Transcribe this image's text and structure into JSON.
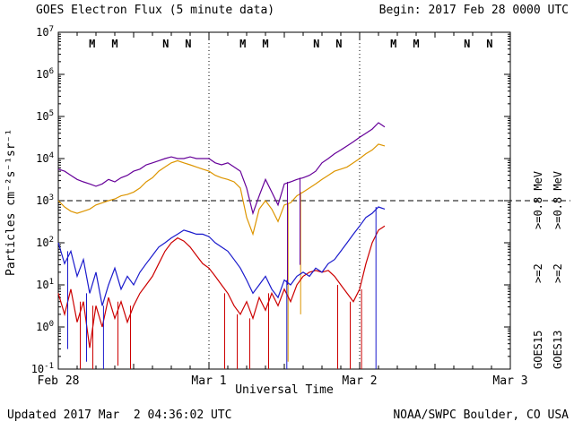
{
  "header": {
    "title": "GOES Electron Flux (5 minute data)",
    "begin": "Begin: 2017 Feb 28 0000 UTC"
  },
  "footer": {
    "updated": "Updated 2017 Mar  2 04:36:02 UTC",
    "credit": "NOAA/SWPC Boulder, CO USA"
  },
  "chart_data": {
    "type": "line",
    "title": "GOES Electron Flux (5 minute data)",
    "xlabel": "Universal Time",
    "ylabel": "Particles cm⁻²s⁻¹sr⁻¹",
    "yscale": "log",
    "ylim": [
      0.1,
      10000000
    ],
    "xaxis": {
      "range_hours": 72,
      "minor_tick_hours": 3,
      "day_gridlines_t": [
        24,
        48
      ],
      "ticks": [
        {
          "t": 0,
          "label": "Feb 28"
        },
        {
          "t": 24,
          "label": "Mar 1"
        },
        {
          "t": 48,
          "label": "Mar 2"
        },
        {
          "t": 72,
          "label": "Mar 3"
        }
      ]
    },
    "yaxis": {
      "max_exp": 7,
      "min_exp": -1,
      "tick_exponents": [
        7,
        6,
        5,
        4,
        3,
        2,
        1,
        0,
        -1
      ]
    },
    "threshold": {
      "value": 1000,
      "style": "dashed"
    },
    "colors": {
      "goes15_gt2": "#cc0000",
      "goes13_gt2": "#1a1acc",
      "goes15_gt08": "#dd9500",
      "goes13_gt08": "#660099",
      "axis": "#000000"
    },
    "t_start": 0,
    "t_step_hours": 1,
    "series": [
      {
        "id": "goes15-ge08mev",
        "name": "GOES15 >=0.8 MeV",
        "color_key": "goes15_gt08",
        "values": [
          1000.0,
          710.0,
          560.0,
          500.0,
          560.0,
          630.0,
          790.0,
          890.0,
          1000.0,
          1100.0,
          1300.0,
          1400.0,
          1600.0,
          2000.0,
          2800.0,
          3500.0,
          5000.0,
          6300.0,
          7900.0,
          8900.0,
          7900.0,
          7100.0,
          6300.0,
          5600.0,
          5000.0,
          4000.0,
          3500.0,
          3200.0,
          2800.0,
          2000.0,
          400.0,
          160.0,
          630.0,
          1000.0,
          630.0,
          320.0,
          790.0,
          890.0,
          1300.0,
          1600.0,
          2000.0,
          2500.0,
          3200.0,
          4000.0,
          5000.0,
          5600.0,
          6300.0,
          7900.0,
          10000.0,
          13000.0,
          16000.0,
          22000.0,
          20000.0
        ],
        "spikes": [
          {
            "t": 36.6,
            "v": 0.15
          },
          {
            "t": 38.6,
            "v": 2.0
          }
        ]
      },
      {
        "id": "goes13-ge08mev",
        "name": "GOES13 >=0.8 MeV",
        "color_key": "goes13_gt08",
        "values": [
          5600.0,
          5000.0,
          4000.0,
          3200.0,
          2800.0,
          2500.0,
          2200.0,
          2500.0,
          3200.0,
          2800.0,
          3500.0,
          4000.0,
          5000.0,
          5600.0,
          7100.0,
          7900.0,
          8900.0,
          10000.0,
          11000.0,
          10000.0,
          10000.0,
          11000.0,
          10000.0,
          10000.0,
          10000.0,
          7900.0,
          7100.0,
          7900.0,
          6300.0,
          5000.0,
          2000.0,
          500.0,
          1300.0,
          3200.0,
          1600.0,
          790.0,
          2500.0,
          2800.0,
          3200.0,
          3500.0,
          4000.0,
          5000.0,
          7900.0,
          10000.0,
          13000.0,
          16000.0,
          20000.0,
          25000.0,
          32000.0,
          40000.0,
          50000.0,
          71000.0,
          56000.0
        ],
        "spikes": [
          {
            "t": 36.5,
            "v": 10
          },
          {
            "t": 38.5,
            "v": 30
          }
        ]
      },
      {
        "id": "goes15-ge2mev",
        "name": "GOES15 >=2 MeV",
        "color_key": "goes15_gt2",
        "values": [
          6.3,
          2.0,
          7.9,
          1.3,
          4.0,
          0.32,
          3.2,
          1.0,
          5.0,
          1.6,
          4.0,
          1.3,
          3.2,
          6.3,
          10.0,
          16.0,
          32.0,
          63.0,
          100.0,
          130.0,
          110.0,
          79.0,
          50.0,
          32.0,
          25.0,
          16.0,
          10.0,
          6.3,
          3.2,
          2.0,
          4.0,
          1.6,
          5.0,
          2.5,
          6.3,
          3.2,
          7.9,
          4.0,
          10.0,
          16.0,
          20.0,
          22.0,
          20.0,
          22.0,
          16.0,
          10.0,
          6.3,
          4.0,
          7.9,
          32.0,
          100.0,
          200.0,
          250.0
        ],
        "spikes": [
          {
            "t": 3.5,
            "v": 0.1
          },
          {
            "t": 5.5,
            "v": 0.1
          },
          {
            "t": 9.5,
            "v": 0.12
          },
          {
            "t": 11.5,
            "v": 0.1
          },
          {
            "t": 26.5,
            "v": 0.1
          },
          {
            "t": 28.5,
            "v": 0.1
          },
          {
            "t": 30.5,
            "v": 0.1
          },
          {
            "t": 33.5,
            "v": 0.1
          },
          {
            "t": 44.5,
            "v": 0.1
          },
          {
            "t": 46.5,
            "v": 0.1
          },
          {
            "t": 48.3,
            "v": 0.1
          }
        ]
      },
      {
        "id": "goes13-ge2mev",
        "name": "GOES13 >=2 MeV",
        "color_key": "goes13_gt2",
        "values": [
          100.0,
          32.0,
          63.0,
          16.0,
          40.0,
          6.3,
          20.0,
          3.2,
          10.0,
          25.0,
          7.9,
          16.0,
          10.0,
          20.0,
          32.0,
          50.0,
          79.0,
          100.0,
          130.0,
          160.0,
          200.0,
          180.0,
          160.0,
          160.0,
          140.0,
          100.0,
          79.0,
          63.0,
          40.0,
          25.0,
          13.0,
          6.3,
          10.0,
          16.0,
          7.9,
          5.0,
          13.0,
          10.0,
          16.0,
          20.0,
          16.0,
          25.0,
          20.0,
          32.0,
          40.0,
          63.0,
          100.0,
          160.0,
          250.0,
          400.0,
          500.0,
          710.0,
          630.0
        ],
        "spikes": [
          {
            "t": 1.5,
            "v": 0.3
          },
          {
            "t": 4.5,
            "v": 0.15
          },
          {
            "t": 7.2,
            "v": 0.1
          },
          {
            "t": 36.4,
            "v": 0.1
          },
          {
            "t": 50.6,
            "v": 0.1
          }
        ]
      }
    ],
    "markers": [
      {
        "t": 5.4,
        "label": "M",
        "color_key": "goes15_gt2"
      },
      {
        "t": 9.0,
        "label": "M",
        "color_key": "goes13_gt2"
      },
      {
        "t": 17.1,
        "label": "N",
        "color_key": "goes15_gt2"
      },
      {
        "t": 20.7,
        "label": "N",
        "color_key": "goes13_gt2"
      },
      {
        "t": 29.4,
        "label": "M",
        "color_key": "goes15_gt2"
      },
      {
        "t": 33.0,
        "label": "M",
        "color_key": "goes13_gt2"
      },
      {
        "t": 41.1,
        "label": "N",
        "color_key": "goes15_gt2"
      },
      {
        "t": 44.7,
        "label": "N",
        "color_key": "goes13_gt2"
      },
      {
        "t": 53.4,
        "label": "M",
        "color_key": "goes15_gt2"
      },
      {
        "t": 57.0,
        "label": "M",
        "color_key": "goes13_gt2"
      },
      {
        "t": 65.1,
        "label": "N",
        "color_key": "goes15_gt2"
      },
      {
        "t": 68.7,
        "label": "N",
        "color_key": "goes13_gt2"
      }
    ],
    "legend": {
      "columns": [
        {
          "sat": "GOES15",
          "items": [
            {
              "label": ">=2",
              "color_key": "goes15_gt2"
            },
            {
              "label": ">=0.8 MeV",
              "color_key": "goes15_gt08"
            }
          ]
        },
        {
          "sat": "GOES13",
          "items": [
            {
              "label": ">=2",
              "color_key": "goes13_gt2"
            },
            {
              "label": ">=0.8 MeV",
              "color_key": "goes13_gt08"
            }
          ]
        }
      ]
    }
  }
}
